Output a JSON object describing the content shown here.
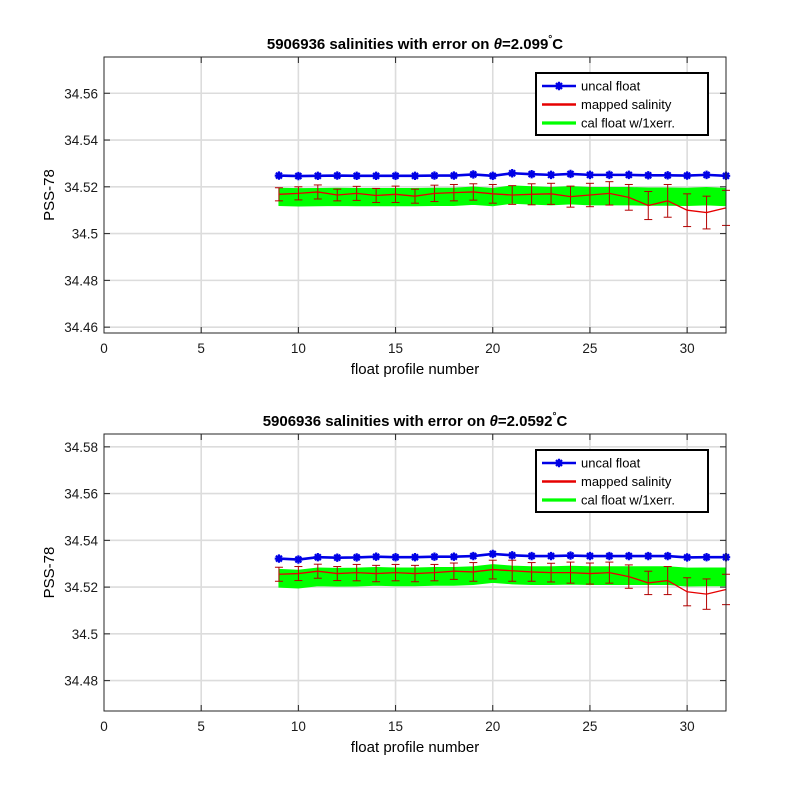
{
  "chart_data": [
    {
      "type": "line",
      "title_prefix": "5906936 salinities with error on ",
      "title_theta": "θ",
      "title_value": "=2.099",
      "title_unit": "C",
      "xlabel": "float profile number",
      "ylabel": "PSS-78",
      "xlim": [
        0,
        32
      ],
      "ylim": [
        34.4575,
        34.5755
      ],
      "xticks": [
        0,
        5,
        10,
        15,
        20,
        25,
        30
      ],
      "yticks": [
        34.46,
        34.48,
        34.5,
        34.52,
        34.54,
        34.56
      ],
      "ytick_labels": [
        "34.46",
        "34.48",
        "34.5",
        "34.52",
        "34.54",
        "34.56"
      ],
      "grid": true,
      "legend_position": "top-right",
      "legend": [
        "uncal float",
        "mapped salinity",
        "cal float w/1xerr."
      ],
      "colors": {
        "uncal": "#0000e6",
        "mapped": "#e60000",
        "cal": "#00ff00",
        "error": "#b30000"
      },
      "x": [
        9,
        10,
        11,
        12,
        13,
        14,
        15,
        16,
        17,
        18,
        19,
        20,
        21,
        22,
        23,
        24,
        25,
        26,
        27,
        28,
        29,
        30,
        31,
        32
      ],
      "series": [
        {
          "name": "uncal float",
          "values": [
            34.5248,
            34.5246,
            34.5247,
            34.5248,
            34.5247,
            34.5247,
            34.5247,
            34.5247,
            34.5248,
            34.5248,
            34.5253,
            34.5247,
            34.5258,
            34.5254,
            34.5251,
            34.5255,
            34.5251,
            34.5251,
            34.5251,
            34.5249,
            34.5249,
            34.5248,
            34.5251,
            34.5247
          ]
        },
        {
          "name": "mapped salinity",
          "values": [
            34.5168,
            34.5172,
            34.5178,
            34.5165,
            34.5172,
            34.5163,
            34.5168,
            34.516,
            34.5172,
            34.5175,
            34.5178,
            34.517,
            34.5165,
            34.5168,
            34.517,
            34.5158,
            34.5165,
            34.5172,
            34.5155,
            34.512,
            34.514,
            34.51,
            34.509,
            34.511
          ],
          "error": [
            0.0028,
            0.0028,
            0.003,
            0.0025,
            0.003,
            0.003,
            0.0035,
            0.003,
            0.0035,
            0.0035,
            0.0035,
            0.004,
            0.004,
            0.0045,
            0.0045,
            0.0045,
            0.005,
            0.005,
            0.0055,
            0.006,
            0.007,
            0.007,
            0.007,
            0.0075
          ]
        },
        {
          "name": "cal float w/1xerr.",
          "upper": [
            34.5194,
            34.5192,
            34.5193,
            34.5194,
            34.5193,
            34.5193,
            34.5193,
            34.5193,
            34.5194,
            34.5194,
            34.5199,
            34.5193,
            34.5204,
            34.52,
            34.5197,
            34.5201,
            34.5197,
            34.5197,
            34.5197,
            34.5195,
            34.5195,
            34.5194,
            34.5197,
            34.5193
          ],
          "lower": [
            34.512,
            34.5118,
            34.5119,
            34.512,
            34.5119,
            34.5119,
            34.5119,
            34.5119,
            34.512,
            34.512,
            34.5125,
            34.5119,
            34.513,
            34.5126,
            34.5123,
            34.5127,
            34.5123,
            34.5123,
            34.5123,
            34.5121,
            34.5121,
            34.512,
            34.5123,
            34.5119
          ]
        }
      ]
    },
    {
      "type": "line",
      "title_prefix": "5906936 salinities with error on ",
      "title_theta": "θ",
      "title_value": "=2.0592",
      "title_unit": "C",
      "xlabel": "float profile number",
      "ylabel": "PSS-78",
      "xlim": [
        0,
        32
      ],
      "ylim": [
        34.467,
        34.5855
      ],
      "xticks": [
        0,
        5,
        10,
        15,
        20,
        25,
        30
      ],
      "yticks": [
        34.48,
        34.5,
        34.52,
        34.54,
        34.56,
        34.58
      ],
      "ytick_labels": [
        "34.48",
        "34.5",
        "34.52",
        "34.54",
        "34.56",
        "34.58"
      ],
      "grid": true,
      "legend_position": "top-right",
      "legend": [
        "uncal float",
        "mapped salinity",
        "cal float w/1xerr."
      ],
      "colors": {
        "uncal": "#0000e6",
        "mapped": "#e60000",
        "cal": "#00ff00",
        "error": "#b30000"
      },
      "x": [
        9,
        10,
        11,
        12,
        13,
        14,
        15,
        16,
        17,
        18,
        19,
        20,
        21,
        22,
        23,
        24,
        25,
        26,
        27,
        28,
        29,
        30,
        31,
        32
      ],
      "series": [
        {
          "name": "uncal float",
          "values": [
            34.5322,
            34.5318,
            34.5328,
            34.5326,
            34.5327,
            34.533,
            34.5328,
            34.5328,
            34.533,
            34.533,
            34.5333,
            34.5342,
            34.5336,
            34.5333,
            34.5333,
            34.5335,
            34.5333,
            34.5333,
            34.5333,
            34.5333,
            34.5333,
            34.5327,
            34.5328,
            34.5328
          ]
        },
        {
          "name": "mapped salinity",
          "values": [
            34.5255,
            34.5258,
            34.5268,
            34.5258,
            34.5262,
            34.5258,
            34.5262,
            34.5258,
            34.5262,
            34.5268,
            34.5265,
            34.5275,
            34.527,
            34.5265,
            34.5262,
            34.5262,
            34.5258,
            34.5262,
            34.5245,
            34.5218,
            34.5228,
            34.518,
            34.517,
            34.519
          ],
          "error": [
            0.003,
            0.003,
            0.003,
            0.003,
            0.0035,
            0.0035,
            0.0035,
            0.0035,
            0.0035,
            0.0035,
            0.004,
            0.004,
            0.0045,
            0.004,
            0.004,
            0.0045,
            0.0045,
            0.0045,
            0.005,
            0.005,
            0.006,
            0.006,
            0.0065,
            0.0065
          ]
        },
        {
          "name": "cal float w/1xerr.",
          "upper": [
            34.5276,
            34.5272,
            34.5282,
            34.528,
            34.5281,
            34.5284,
            34.5282,
            34.5282,
            34.5284,
            34.5284,
            34.5287,
            34.5296,
            34.529,
            34.5287,
            34.5287,
            34.5289,
            34.5287,
            34.5287,
            34.5287,
            34.5287,
            34.5287,
            34.5281,
            34.5282,
            34.5282
          ],
          "lower": [
            34.52,
            34.5196,
            34.5206,
            34.5204,
            34.5205,
            34.5208,
            34.5206,
            34.5206,
            34.5208,
            34.5208,
            34.5211,
            34.522,
            34.5214,
            34.5211,
            34.5211,
            34.5213,
            34.5211,
            34.5211,
            34.5211,
            34.5211,
            34.5211,
            34.5205,
            34.5206,
            34.5206
          ]
        }
      ]
    }
  ]
}
